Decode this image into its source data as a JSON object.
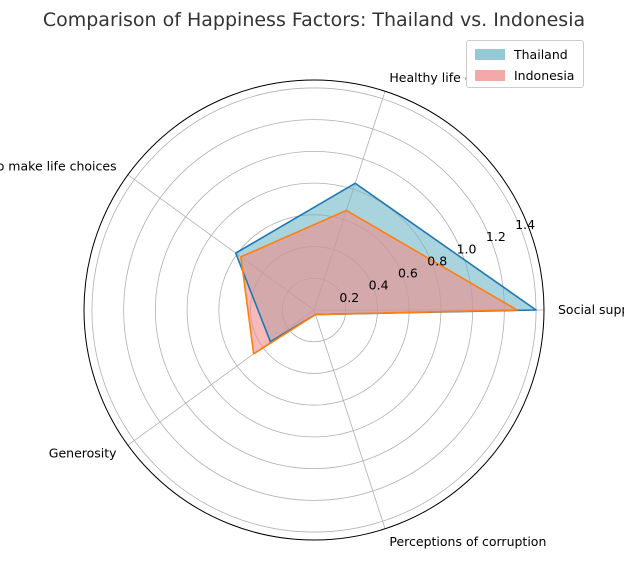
{
  "chart_data": {
    "type": "radar",
    "title": "Comparison of Happiness Factors: Thailand vs. Indonesia",
    "categories": [
      "Social support",
      "Healthy life expectancy",
      "Freedom to make life choices",
      "Generosity",
      "Perceptions of corruption"
    ],
    "radial_ticks": [
      "0.2",
      "0.4",
      "0.6",
      "0.8",
      "1.0",
      "1.2",
      "1.4"
    ],
    "radial_tick_values": [
      0.2,
      0.4,
      0.6,
      0.8,
      1.0,
      1.2,
      1.4
    ],
    "rmax": 1.45,
    "grid": true,
    "legend_position": "top-right",
    "series": [
      {
        "name": "Thailand",
        "values": [
          1.4,
          0.84,
          0.61,
          0.34,
          0.03
        ],
        "line_color": "#1f77b4",
        "fill_color": "#6fb8c7"
      },
      {
        "name": "Indonesia",
        "values": [
          1.28,
          0.66,
          0.57,
          0.47,
          0.03
        ],
        "line_color": "#ff7f0e",
        "fill_color": "#f08c8c"
      }
    ]
  }
}
